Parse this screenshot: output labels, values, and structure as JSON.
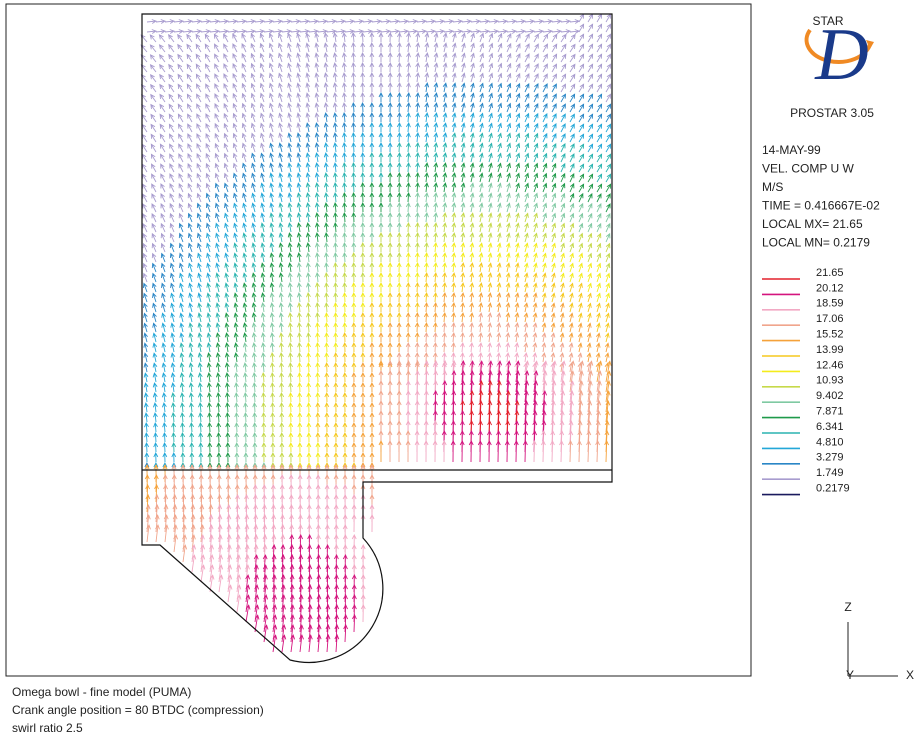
{
  "logo": {
    "top": "STAR",
    "mark": "D",
    "bottom": "PROSTAR 3.05"
  },
  "info": [
    "14-MAY-99",
    "VEL. COMP  U W",
    "M/S",
    "TIME = 0.416667E-02",
    "LOCAL MX=  21.65",
    "LOCAL MN= 0.2179"
  ],
  "legend": {
    "levels": [
      {
        "label": "21.65",
        "color": "#e3202c"
      },
      {
        "label": "20.12",
        "color": "#d4147e"
      },
      {
        "label": "18.59",
        "color": "#f2a9c4"
      },
      {
        "label": "17.06",
        "color": "#f0a58c"
      },
      {
        "label": "15.52",
        "color": "#f5a23a"
      },
      {
        "label": "13.99",
        "color": "#f6c81e"
      },
      {
        "label": "12.46",
        "color": "#f4ec1c"
      },
      {
        "label": "10.93",
        "color": "#c6d94a"
      },
      {
        "label": "9.402",
        "color": "#7fc9a2"
      },
      {
        "label": "7.871",
        "color": "#1f9a4a"
      },
      {
        "label": "6.341",
        "color": "#2ab4b0"
      },
      {
        "label": "4.810",
        "color": "#23a7d8"
      },
      {
        "label": "3.279",
        "color": "#2a86c6"
      },
      {
        "label": "1.749",
        "color": "#a89ccf"
      },
      {
        "label": "0.2179",
        "color": "#1a1a5e"
      }
    ]
  },
  "axes": {
    "z": "Z",
    "y": "Y",
    "x": "X"
  },
  "caption": [
    "Omega bowl - fine model (PUMA)",
    "Crank angle position = 80  BTDC (compression)",
    "swirl ratio 2.5"
  ]
}
